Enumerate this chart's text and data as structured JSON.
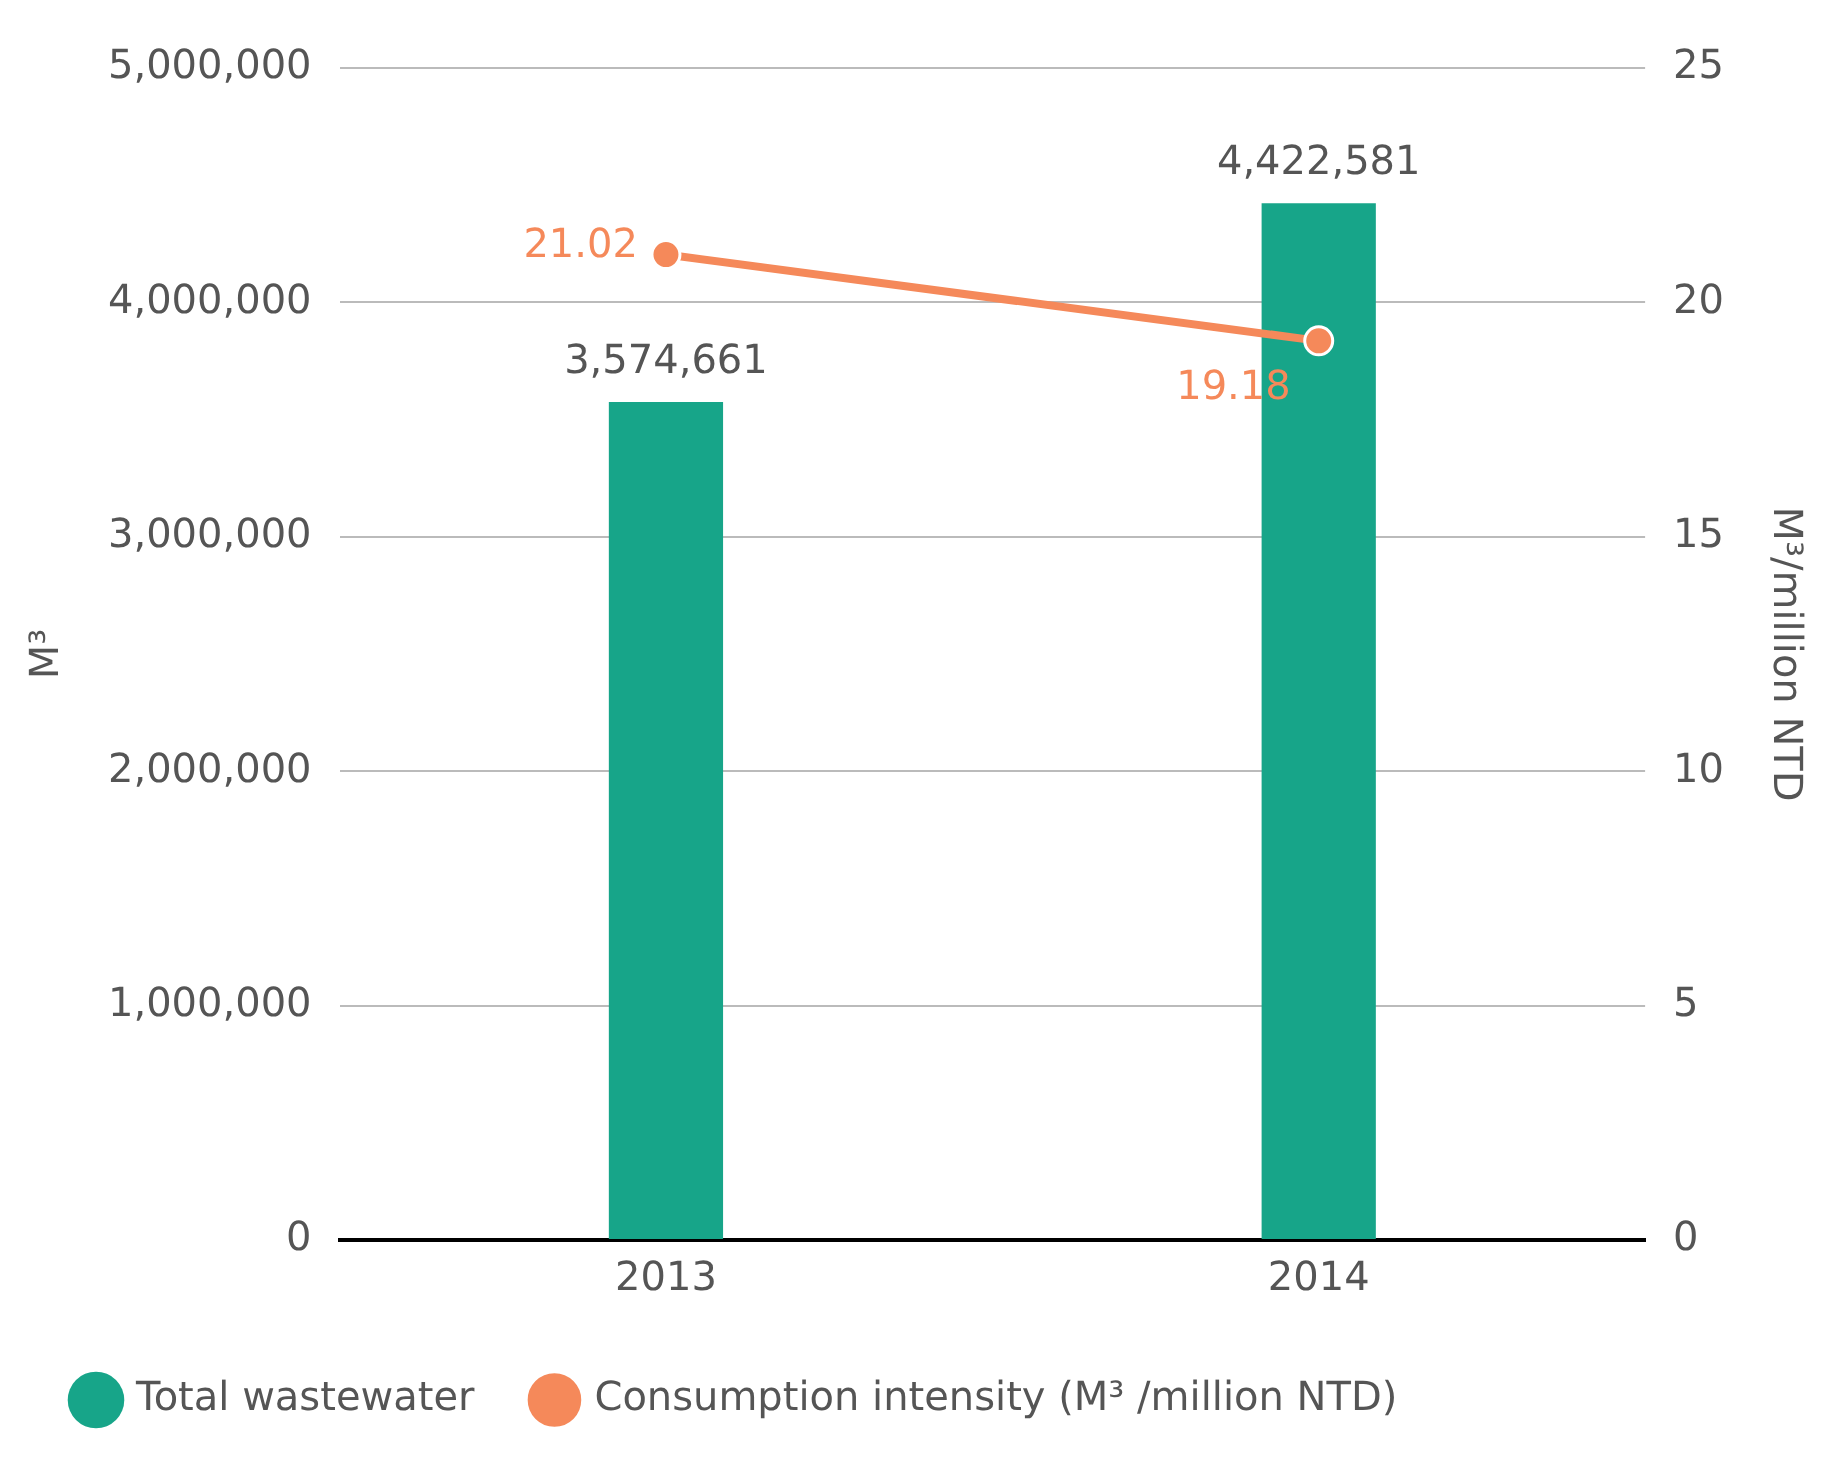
{
  "chart_data": {
    "type": "bar",
    "categories": [
      "2013",
      "2014"
    ],
    "series": [
      {
        "name": "Total wastewater",
        "color": "#17a589",
        "values": [
          3574661,
          4422581
        ],
        "value_labels": [
          "3,574,661",
          "4,422,581"
        ]
      },
      {
        "name": "Consumption intensity (M³ /million NTD)",
        "type": "line",
        "axis": "y2",
        "color": "#f5895a",
        "values": [
          21.02,
          19.18
        ]
      }
    ],
    "ylabel": "M³",
    "y2label": "M³/million NTD",
    "ylim": [
      0,
      5000000
    ],
    "yticks": [
      {
        "value": 0,
        "label": "0"
      },
      {
        "value": 1000000,
        "label": "1,000,000"
      },
      {
        "value": 2000000,
        "label": "2,000,000"
      },
      {
        "value": 3000000,
        "label": "3,000,000"
      },
      {
        "value": 4000000,
        "label": "4,000,000"
      },
      {
        "value": 5000000,
        "label": "5,000,000"
      }
    ],
    "y2lim": [
      0,
      25
    ],
    "y2ticks": [
      0,
      5,
      10,
      15,
      20,
      25
    ],
    "grid": "y",
    "legend": "bottom left",
    "marker": "circle",
    "data_labels": true
  }
}
